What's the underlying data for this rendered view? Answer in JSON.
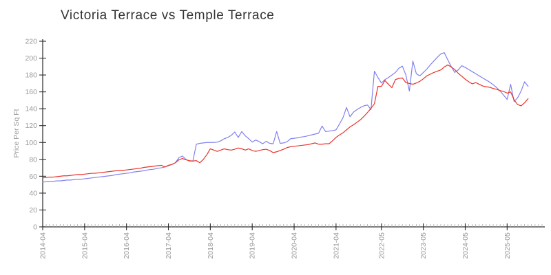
{
  "chart_data": {
    "type": "line",
    "title": "Victoria Terrace vs Temple Terrace",
    "xlabel": "",
    "ylabel": "Price Per Sq Ft",
    "ylim": [
      0,
      220
    ],
    "y_ticks": [
      0,
      20,
      40,
      60,
      80,
      100,
      120,
      140,
      160,
      180,
      200,
      220
    ],
    "grid": false,
    "legend_position": "none",
    "colors": {
      "victoria_terrace": "#8080ef",
      "temple_terrace": "#e93128",
      "axis": "#2a2a2a",
      "minor_tick": "#aaaaaa",
      "tick_label": "#999999",
      "title": "#333333"
    },
    "x_major_ticks": [
      {
        "index": 0,
        "label": "2014-04"
      },
      {
        "index": 12,
        "label": "2015-04"
      },
      {
        "index": 24,
        "label": "2016-04"
      },
      {
        "index": 36,
        "label": "2017-04"
      },
      {
        "index": 48,
        "label": "2018-04"
      },
      {
        "index": 60,
        "label": "2019-04"
      },
      {
        "index": 72,
        "label": "2020-04"
      },
      {
        "index": 84,
        "label": "2021-04"
      },
      {
        "index": 97,
        "label": "2022-05"
      },
      {
        "index": 109,
        "label": "2023-05"
      },
      {
        "index": 121,
        "label": "2024-05"
      },
      {
        "index": 133,
        "label": "2025-05"
      }
    ],
    "x": [
      "2014-04",
      "2014-05",
      "2014-06",
      "2014-07",
      "2014-08",
      "2014-09",
      "2014-10",
      "2014-11",
      "2014-12",
      "2015-01",
      "2015-02",
      "2015-03",
      "2015-04",
      "2015-05",
      "2015-06",
      "2015-07",
      "2015-08",
      "2015-09",
      "2015-10",
      "2015-11",
      "2015-12",
      "2016-01",
      "2016-02",
      "2016-03",
      "2016-04",
      "2016-05",
      "2016-06",
      "2016-07",
      "2016-08",
      "2016-09",
      "2016-10",
      "2016-11",
      "2016-12",
      "2017-01",
      "2017-02",
      "2017-03",
      "2017-04",
      "2017-05",
      "2017-06",
      "2017-07",
      "2017-08",
      "2017-09",
      "2017-10",
      "2017-11",
      "2017-12",
      "2018-01",
      "2018-02",
      "2018-03",
      "2018-04",
      "2018-05",
      "2018-06",
      "2018-07",
      "2018-08",
      "2018-09",
      "2018-10",
      "2018-11",
      "2018-12",
      "2019-01",
      "2019-02",
      "2019-03",
      "2019-04",
      "2019-05",
      "2019-06",
      "2019-07",
      "2019-08",
      "2019-09",
      "2019-10",
      "2019-11",
      "2019-12",
      "2020-01",
      "2020-02",
      "2020-03",
      "2020-04",
      "2020-05",
      "2020-06",
      "2020-07",
      "2020-08",
      "2020-09",
      "2020-10",
      "2020-11",
      "2020-12",
      "2021-01",
      "2021-02",
      "2021-03",
      "2021-04",
      "2021-05",
      "2021-06",
      "2021-07",
      "2021-08",
      "2021-09",
      "2021-10",
      "2021-11",
      "2021-12",
      "2022-01",
      "2022-02",
      "2022-03",
      "2022-04",
      "2022-05",
      "2022-06",
      "2022-07",
      "2022-08",
      "2022-09",
      "2022-10",
      "2022-11",
      "2022-12",
      "2023-01",
      "2023-02",
      "2023-03",
      "2023-04",
      "2023-05",
      "2023-06",
      "2023-07",
      "2023-08",
      "2023-09",
      "2023-10",
      "2023-11",
      "2023-12",
      "2024-01",
      "2024-02",
      "2024-03",
      "2024-04",
      "2024-05",
      "2024-06",
      "2024-07",
      "2024-08",
      "2024-09",
      "2024-10",
      "2024-11",
      "2024-12",
      "2025-01",
      "2025-02",
      "2025-03",
      "2025-04",
      "2025-05",
      "2025-06",
      "2025-07",
      "2025-08",
      "2025-09",
      "2025-10",
      "2025-11"
    ],
    "series": [
      {
        "name": "Victoria Terrace",
        "color": "#8080ef",
        "values": [
          53,
          53.5,
          53.5,
          54,
          54.5,
          54.5,
          55,
          55.5,
          55.5,
          56,
          56.5,
          56.5,
          57,
          57.5,
          58,
          58.5,
          59,
          59.5,
          60,
          60.5,
          61,
          62,
          62.5,
          63,
          63.5,
          64,
          65,
          65.5,
          66,
          66.5,
          67.5,
          68,
          68.5,
          69.5,
          70,
          71,
          72.5,
          74,
          76,
          82,
          84,
          80,
          78,
          78,
          98,
          99,
          99.5,
          100,
          100,
          100,
          100.5,
          102,
          104.5,
          106,
          108.5,
          112.5,
          106,
          113,
          108,
          104.5,
          100.5,
          103,
          101,
          98.5,
          101.5,
          99,
          98.5,
          113,
          99,
          99.5,
          101,
          104.5,
          105,
          105.5,
          106.5,
          107,
          108,
          109,
          110,
          111,
          119.5,
          113,
          113.5,
          114,
          115,
          122,
          129.5,
          141.5,
          130.5,
          136,
          139,
          141.5,
          143.5,
          144.5,
          139,
          184.5,
          177,
          170.5,
          174.5,
          177,
          180,
          183,
          188,
          190.5,
          180,
          161,
          196.5,
          181.5,
          179,
          183,
          187,
          192,
          196.5,
          201,
          205,
          206.5,
          198,
          190,
          183,
          186,
          191,
          189,
          186.5,
          184,
          181.5,
          179,
          176.5,
          174,
          171.5,
          168.5,
          165,
          161,
          156,
          151,
          169,
          148.5,
          153,
          161,
          172,
          166.5
        ]
      },
      {
        "name": "Temple Terrace",
        "color": "#e93128",
        "values": [
          58,
          58.5,
          59,
          59,
          59.5,
          60,
          60.5,
          60.5,
          61,
          61.5,
          62,
          62,
          62.5,
          63,
          63.5,
          63.5,
          64,
          64.5,
          65,
          65.5,
          66,
          66.5,
          66.5,
          67,
          67.5,
          68,
          68.5,
          69,
          69.5,
          70.5,
          71,
          71.5,
          72,
          72.5,
          73,
          71,
          73,
          74,
          76,
          79.5,
          81,
          79.5,
          78.5,
          78,
          78.5,
          76,
          80,
          85.5,
          92.5,
          91,
          89.5,
          91,
          92.5,
          91.5,
          91,
          92,
          93.5,
          92.5,
          91,
          92.5,
          90.5,
          89.5,
          90.5,
          91.5,
          92,
          90.5,
          88,
          89,
          90.5,
          92,
          94,
          95,
          95.5,
          96,
          96.5,
          97,
          97.5,
          98.5,
          99.5,
          98,
          98,
          98.5,
          98.5,
          102,
          106,
          109,
          111.5,
          115,
          118.5,
          121,
          124,
          127,
          131,
          135.5,
          140.5,
          146,
          166.5,
          166.5,
          173.5,
          169,
          165,
          174.5,
          176,
          176.5,
          171,
          170,
          169,
          170.5,
          172.5,
          175.5,
          179,
          181,
          183,
          184.5,
          186,
          189.5,
          192,
          189.5,
          186.5,
          182,
          178.5,
          175,
          172,
          169.5,
          171,
          169,
          167,
          166,
          165.5,
          164,
          163,
          161.5,
          160.5,
          158.5,
          160,
          150.5,
          145,
          143.5,
          147,
          152
        ]
      }
    ]
  }
}
